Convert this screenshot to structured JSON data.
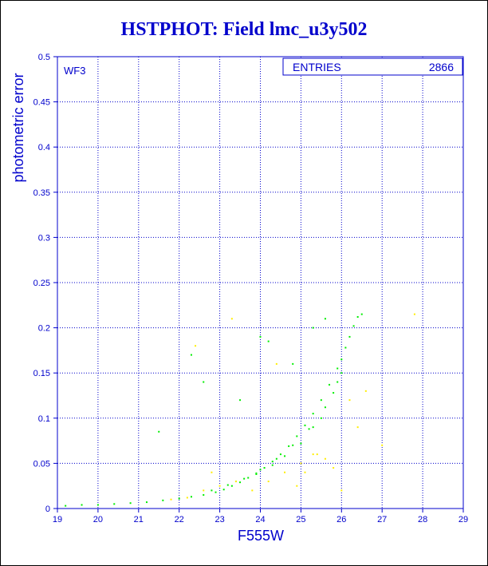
{
  "title": "HSTPHOT: Field lmc_u3y502",
  "chart_data": {
    "type": "scatter",
    "title": "HSTPHOT: Field lmc_u3y502",
    "xlabel": "F555W",
    "ylabel": "photometric error",
    "xlim": [
      19,
      29
    ],
    "ylim": [
      0,
      0.5
    ],
    "x_ticks": [
      "19",
      "20",
      "21",
      "22",
      "23",
      "24",
      "25",
      "26",
      "27",
      "28",
      "29"
    ],
    "y_ticks": [
      "0",
      "0.05",
      "0.1",
      "0.15",
      "0.2",
      "0.25",
      "0.3",
      "0.35",
      "0.4",
      "0.45",
      "0.5"
    ],
    "grid": true,
    "panel_label": "WF3",
    "stats_box": {
      "label": "ENTRIES",
      "value": "2866"
    },
    "series": [
      {
        "color": "#00ee00",
        "x": [
          19.2,
          19.6,
          20.0,
          20.4,
          20.8,
          21.2,
          21.6,
          22.0,
          22.3,
          22.6,
          22.9,
          23.1,
          23.3,
          23.5,
          23.7,
          23.9,
          24.1,
          24.3,
          24.5,
          24.7,
          24.9,
          25.1,
          25.3,
          25.5,
          25.7,
          25.9,
          26.0,
          26.1,
          26.2,
          26.3,
          26.4,
          26.5,
          22.8,
          23.2,
          23.6,
          24.0,
          24.4,
          24.8,
          25.2,
          25.6,
          25.9,
          23.4,
          23.9,
          24.3,
          24.6,
          25.0,
          25.3,
          25.5,
          25.8,
          26.0,
          22.3,
          22.6,
          23.5,
          24.2,
          24.8,
          25.3,
          21.5,
          24.0,
          25.6
        ],
        "y": [
          0.003,
          0.004,
          0.004,
          0.005,
          0.006,
          0.007,
          0.009,
          0.011,
          0.013,
          0.015,
          0.018,
          0.021,
          0.025,
          0.029,
          0.034,
          0.039,
          0.045,
          0.052,
          0.06,
          0.069,
          0.08,
          0.092,
          0.105,
          0.12,
          0.137,
          0.155,
          0.165,
          0.178,
          0.19,
          0.202,
          0.212,
          0.215,
          0.02,
          0.026,
          0.033,
          0.043,
          0.055,
          0.07,
          0.088,
          0.112,
          0.14,
          0.03,
          0.038,
          0.048,
          0.058,
          0.072,
          0.09,
          0.1,
          0.128,
          0.15,
          0.17,
          0.14,
          0.12,
          0.185,
          0.16,
          0.2,
          0.085,
          0.19,
          0.21
        ]
      },
      {
        "color": "#ffee00",
        "x": [
          21.8,
          22.2,
          22.6,
          23.0,
          23.4,
          23.8,
          24.2,
          24.6,
          25.0,
          25.4,
          25.8,
          26.2,
          26.6,
          27.0,
          27.8,
          22.4,
          23.3,
          24.4,
          25.1,
          25.6,
          26.0,
          26.4,
          24.9,
          25.3,
          22.8
        ],
        "y": [
          0.01,
          0.012,
          0.02,
          0.025,
          0.03,
          0.02,
          0.03,
          0.04,
          0.05,
          0.06,
          0.045,
          0.12,
          0.13,
          0.07,
          0.215,
          0.18,
          0.21,
          0.16,
          0.04,
          0.055,
          0.02,
          0.09,
          0.025,
          0.06,
          0.04
        ]
      }
    ]
  }
}
